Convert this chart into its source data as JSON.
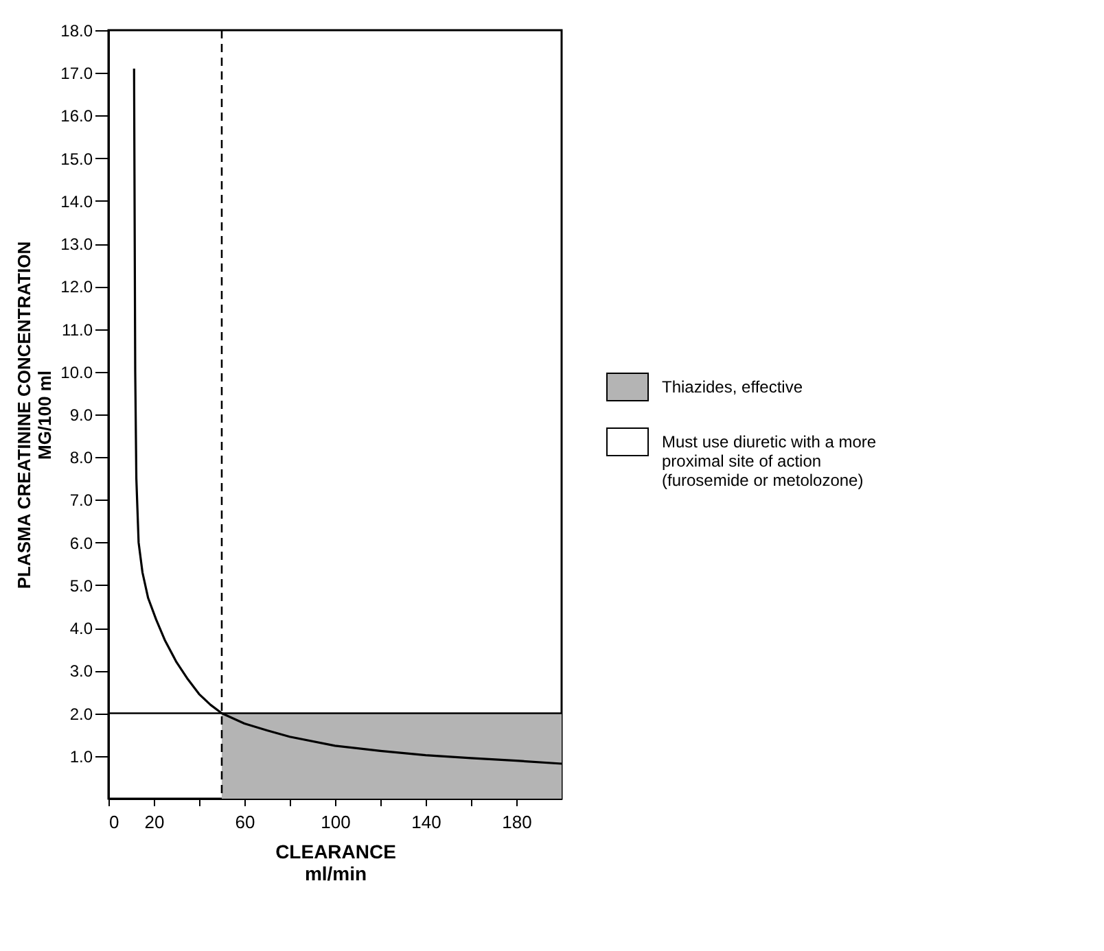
{
  "chart_data": {
    "type": "line",
    "xlabel": "CLEARANCE\nml/min",
    "ylabel": "PLASMA CREATININE CONCENTRATION\nMG/100 ml",
    "xlim": [
      0,
      200
    ],
    "ylim": [
      0,
      18
    ],
    "xticks": [
      0,
      20,
      {
        "value": 40,
        "label": null
      },
      60,
      {
        "value": 80,
        "label": null
      },
      100,
      {
        "value": 120,
        "label": null
      },
      140,
      {
        "value": 160,
        "label": null
      },
      180
    ],
    "yticks": [
      {
        "value": 1,
        "label": "1.0"
      },
      {
        "value": 2,
        "label": "2.0"
      },
      {
        "value": 3,
        "label": "3.0"
      },
      {
        "value": 4,
        "label": "4.0"
      },
      {
        "value": 5,
        "label": "5.0"
      },
      {
        "value": 6,
        "label": "6.0"
      },
      {
        "value": 7,
        "label": "7.0"
      },
      {
        "value": 8,
        "label": "8.0"
      },
      {
        "value": 9,
        "label": "9.0"
      },
      {
        "value": 10,
        "label": "10.0"
      },
      {
        "value": 11,
        "label": "11.0"
      },
      {
        "value": 12,
        "label": "12.0"
      },
      {
        "value": 13,
        "label": "13.0"
      },
      {
        "value": 14,
        "label": "14.0"
      },
      {
        "value": 15,
        "label": "15.0"
      },
      {
        "value": 16,
        "label": "16.0"
      },
      {
        "value": 17,
        "label": "17.0"
      },
      {
        "value": 18,
        "label": "18.0"
      }
    ],
    "grid": false,
    "legend": "right",
    "series": [
      {
        "type": "area",
        "name": "Must use diuretic with a more\nproximal site of action\n(furosemide or metolozone)",
        "color": "#ffffff"
      },
      {
        "type": "area",
        "name": "Thiazides, effective",
        "color": "#b4b4b4",
        "x": [
          50,
          200
        ],
        "values": [
          2,
          2
        ]
      },
      {
        "type": "line",
        "color": "#000000",
        "line_style": "solid",
        "x": [
          11.3,
          11.8,
          12.3,
          13.3,
          15,
          17.5,
          21,
          25,
          30,
          35,
          40,
          45,
          50,
          60,
          70,
          80,
          100,
          120,
          140,
          160,
          180,
          200
        ],
        "values": [
          17.1,
          10,
          7.5,
          6,
          5.3,
          4.7,
          4.2,
          3.7,
          3.2,
          2.8,
          2.45,
          2.2,
          2.0,
          1.76,
          1.6,
          1.45,
          1.24,
          1.12,
          1.02,
          0.95,
          0.89,
          0.82
        ]
      }
    ],
    "ref_lines": [
      {
        "axis": "x",
        "value": 50,
        "color": "#000000",
        "line_style": "dashed"
      },
      {
        "axis": "y",
        "value": 2,
        "color": "#000000",
        "line_style": "solid"
      }
    ]
  }
}
